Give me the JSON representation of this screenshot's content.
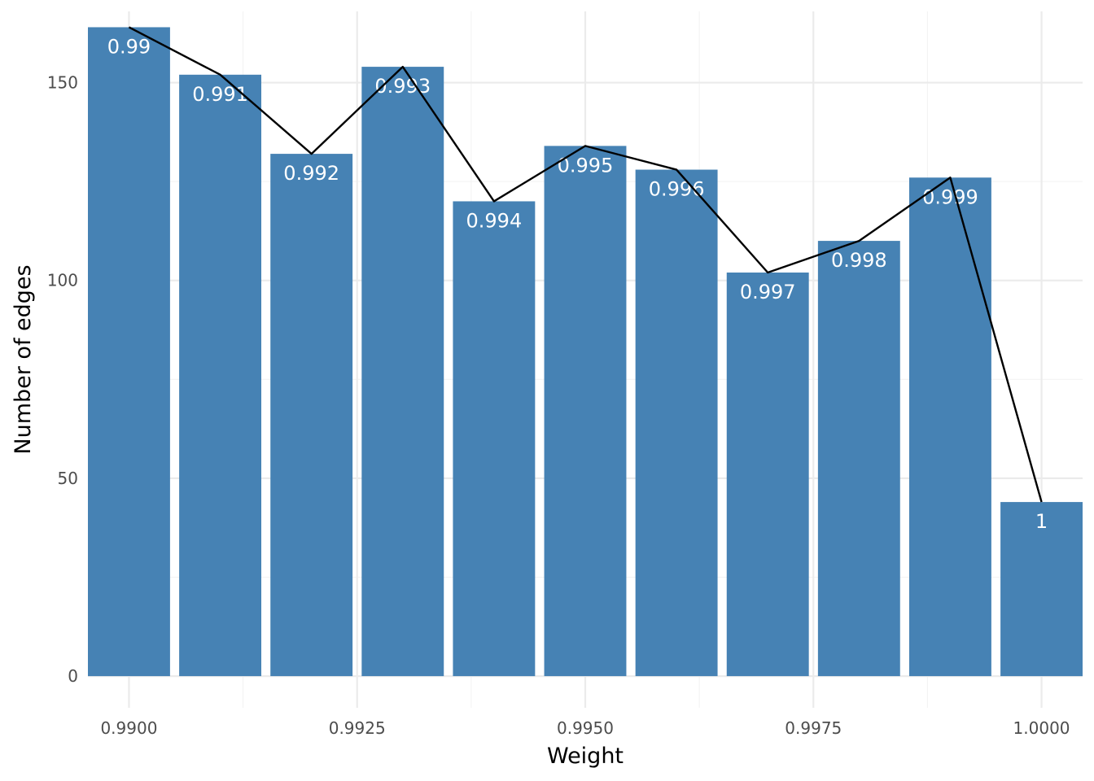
{
  "chart_data": {
    "type": "bar",
    "xlabel": "Weight",
    "ylabel": "Number of edges",
    "xlim": [
      0.98955,
      1.00045
    ],
    "ylim": [
      -8,
      168
    ],
    "x_ticks": [
      0.99,
      0.9925,
      0.995,
      0.9975,
      1.0
    ],
    "x_tick_labels": [
      "0.9900",
      "0.9925",
      "0.9950",
      "0.9975",
      "1.0000"
    ],
    "x_minor_ticks": [
      0.99125,
      0.99375,
      0.99625,
      0.99875
    ],
    "y_ticks": [
      0,
      50,
      100,
      150
    ],
    "y_tick_labels": [
      "0",
      "50",
      "100",
      "150"
    ],
    "y_minor_ticks": [
      25,
      75,
      125
    ],
    "bar_width": 0.0009,
    "bar_color": "#4682B4",
    "line_color": "#000000",
    "grid": true,
    "legend": "none",
    "x": [
      0.99,
      0.991,
      0.992,
      0.993,
      0.994,
      0.995,
      0.996,
      0.997,
      0.998,
      0.999,
      1.0
    ],
    "values": [
      164,
      152,
      132,
      154,
      120,
      134,
      128,
      102,
      110,
      126,
      44
    ],
    "bar_labels": [
      "0.99",
      "0.991",
      "0.992",
      "0.993",
      "0.994",
      "0.995",
      "0.996",
      "0.997",
      "0.998",
      "0.999",
      "1"
    ]
  }
}
